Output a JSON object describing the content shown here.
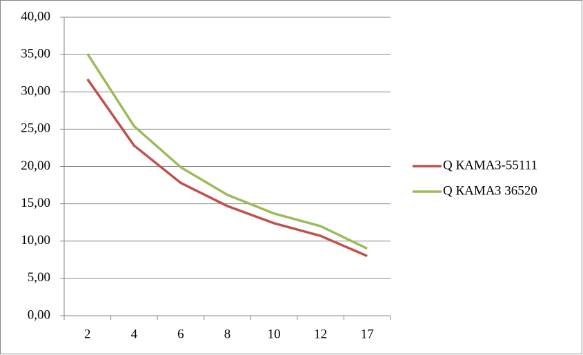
{
  "chart_data": {
    "type": "line",
    "categories": [
      "2",
      "4",
      "6",
      "8",
      "10",
      "12",
      "17"
    ],
    "series": [
      {
        "name": "Q КАМАЗ-55111",
        "color": "#c0504d",
        "values": [
          31.7,
          22.8,
          17.8,
          14.7,
          12.4,
          10.7,
          8.0
        ]
      },
      {
        "name": "Q КАМАЗ 36520",
        "color": "#9bbb59",
        "values": [
          35.1,
          25.4,
          19.9,
          16.2,
          13.7,
          12.0,
          9.0
        ]
      }
    ],
    "ylim": [
      0,
      40
    ],
    "yticks": [
      {
        "value": 0,
        "label": "0,00"
      },
      {
        "value": 5,
        "label": "5,00"
      },
      {
        "value": 10,
        "label": "10,00"
      },
      {
        "value": 15,
        "label": "15,00"
      },
      {
        "value": 20,
        "label": "20,00"
      },
      {
        "value": 25,
        "label": "25,00"
      },
      {
        "value": 30,
        "label": "30,00"
      },
      {
        "value": 35,
        "label": "35,00"
      },
      {
        "value": 40,
        "label": "40,00"
      }
    ],
    "grid": true,
    "legend": "right"
  }
}
